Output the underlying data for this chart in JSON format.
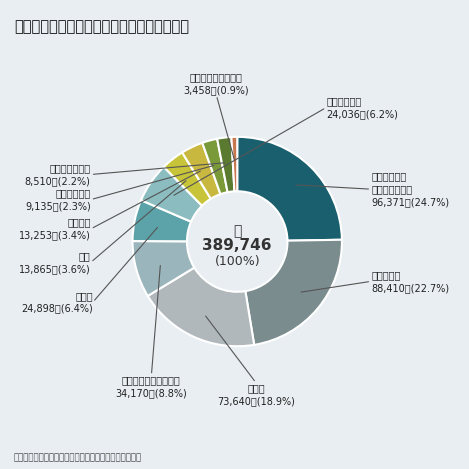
{
  "title": "産業廃棄物の業種別排出量（平成２１年度）",
  "source": "出典：環境省「産業廃棄物排出・処理状況調査報告書」",
  "total_label": "計",
  "total_value": "389,746",
  "total_pct": "(100%)",
  "slices": [
    {
      "label": "電気・ガス・\n熱供給・水道業",
      "value": 96371,
      "pct": "(24.7%)",
      "display_value": "96,371",
      "color": "#1a5f6e"
    },
    {
      "label": "農業，林業",
      "value": 88410,
      "pct": "(22.7%)",
      "display_value": "88,410",
      "color": "#7a8c8e"
    },
    {
      "label": "建設業",
      "value": 73640,
      "pct": "(18.9%)",
      "display_value": "73,640",
      "color": "#b0b8bc"
    },
    {
      "label": "パルプ・紙・紙加工品",
      "value": 34170,
      "pct": "(8.8%)",
      "display_value": "34,170",
      "color": "#9ab5bc"
    },
    {
      "label": "鉄鋼業",
      "value": 24898,
      "pct": "(6.4%)",
      "display_value": "24,898",
      "color": "#5ba3a8"
    },
    {
      "label": "その他の業種",
      "value": 24036,
      "pct": "(6.2%)",
      "display_value": "24,036",
      "color": "#8bbcbf"
    },
    {
      "label": "鉱業",
      "value": 13865,
      "pct": "(3.6%)",
      "display_value": "13,865",
      "color": "#c8c43a"
    },
    {
      "label": "化学工業",
      "value": 13253,
      "pct": "(3.4%)",
      "display_value": "13,253",
      "color": "#c8b840"
    },
    {
      "label": "食料品製造業",
      "value": 9135,
      "pct": "(2.3%)",
      "display_value": "9,135",
      "color": "#7a9a3a"
    },
    {
      "label": "窯業・土石製品",
      "value": 8510,
      "pct": "(2.2%)",
      "display_value": "8,510",
      "color": "#5a7a30"
    },
    {
      "label": "飲料・たばこ・飼料",
      "value": 3458,
      "pct": "(0.9%)",
      "display_value": "3,458",
      "color": "#c87850"
    }
  ]
}
